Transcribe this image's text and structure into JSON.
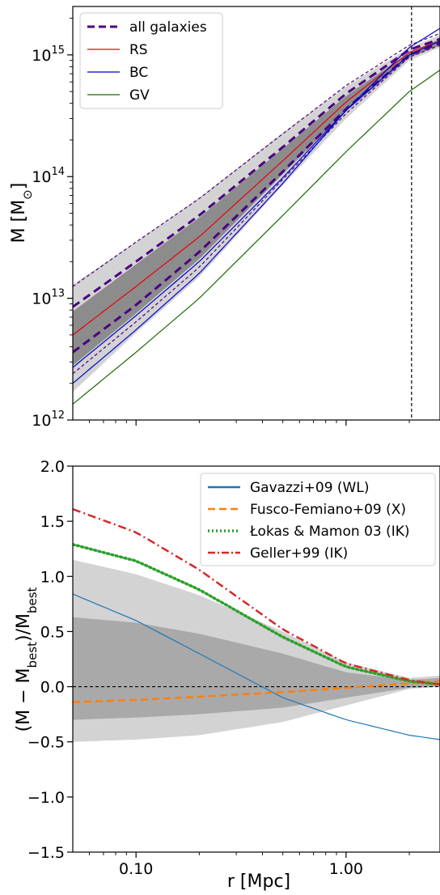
{
  "chart_data": [
    {
      "type": "line",
      "ylabel": "M [M",
      "ylabel_sub": "⊙",
      "ylabel_end": "]",
      "xscale": "log",
      "yscale": "log",
      "xlim": [
        0.05,
        2.8
      ],
      "ylim": [
        1000000000000.0,
        2500000000000000.0
      ],
      "ytick_base": "10",
      "yticks": [
        {
          "value": 1000000000000.0,
          "exp": "12"
        },
        {
          "value": 10000000000000.0,
          "exp": "13"
        },
        {
          "value": 100000000000000.0,
          "exp": "14"
        },
        {
          "value": 1000000000000000.0,
          "exp": "15"
        }
      ],
      "vline_x": 2.05,
      "legend_position": "top-left",
      "bands": [
        {
          "x": [
            0.05,
            0.1,
            0.2,
            0.5,
            1.0,
            2.0,
            2.8
          ],
          "lower": [
            2800000000000.0,
            7500000000000.0,
            21000000000000.0,
            105000000000000.0,
            345000000000000.0,
            950000000000000.0,
            1200000000000000.0
          ],
          "upper": [
            7800000000000.0,
            19000000000000.0,
            46000000000000.0,
            170000000000000.0,
            460000000000000.0,
            1050000000000000.0,
            1350000000000000.0
          ],
          "color": "#8c8c8c"
        },
        {
          "x": [
            0.05,
            0.1,
            0.2,
            0.5,
            1.0,
            2.0,
            2.8
          ],
          "lower": [
            1700000000000.0,
            5200000000000.0,
            15000000000000.0,
            85000000000000.0,
            300000000000000.0,
            900000000000000.0,
            1150000000000000.0
          ],
          "upper": [
            13000000000000.0,
            29000000000000.0,
            67000000000000.0,
            230000000000000.0,
            550000000000000.0,
            1150000000000000.0,
            1450000000000000.0
          ],
          "color": "#d3d3d3"
        }
      ],
      "series": [
        {
          "name": "all galaxies",
          "style": "dashed-thick",
          "color": "#4b0082",
          "x": [
            0.05,
            0.1,
            0.2,
            0.5,
            1.0,
            2.0,
            2.8
          ],
          "y": [
            8500000000000.0,
            20000000000000.0,
            48000000000000.0,
            175000000000000.0,
            480000000000000.0,
            1100000000000000.0,
            1350000000000000.0
          ]
        },
        {
          "name": "",
          "style": "dashed-thick",
          "color": "#4b0082",
          "x": [
            0.05,
            0.1,
            0.2,
            0.5,
            1.0,
            2.0,
            2.8
          ],
          "y": [
            3600000000000.0,
            8800000000000.0,
            24000000000000.0,
            110000000000000.0,
            360000000000000.0,
            1000000000000000.0,
            1250000000000000.0
          ]
        },
        {
          "name": "",
          "style": "dashed-thin",
          "color": "#4b0082",
          "x": [
            0.05,
            0.1,
            0.2,
            0.5,
            1.0,
            2.0,
            2.8
          ],
          "y": [
            12500000000000.0,
            29000000000000.0,
            66000000000000.0,
            225000000000000.0,
            560000000000000.0,
            1200000000000000.0,
            1500000000000000.0
          ]
        },
        {
          "name": "",
          "style": "dashed-thin",
          "color": "#4b0082",
          "x": [
            0.05,
            0.1,
            0.2,
            0.5,
            1.0,
            2.0,
            2.8
          ],
          "y": [
            2400000000000.0,
            6400000000000.0,
            18000000000000.0,
            95000000000000.0,
            330000000000000.0,
            960000000000000.0,
            1200000000000000.0
          ]
        },
        {
          "name": "RS",
          "style": "solid",
          "color": "#e8000b",
          "x": [
            0.05,
            0.1,
            0.2,
            0.5,
            1.0,
            2.0,
            2.8
          ],
          "y": [
            5000000000000.0,
            12500000000000.0,
            32000000000000.0,
            135000000000000.0,
            410000000000000.0,
            1050000000000000.0,
            1300000000000000.0
          ]
        },
        {
          "name": "BC",
          "style": "solid",
          "color": "#0000cd",
          "x": [
            0.05,
            0.1,
            0.2,
            0.5,
            1.0,
            2.0,
            2.8
          ],
          "y": [
            2000000000000.0,
            5500000000000.0,
            16000000000000.0,
            88000000000000.0,
            350000000000000.0,
            1150000000000000.0,
            1650000000000000.0
          ]
        },
        {
          "name": "",
          "style": "solid",
          "color": "#0000cd",
          "x": [
            0.05,
            0.1,
            0.2,
            0.5,
            1.0,
            2.0,
            2.8
          ],
          "y": [
            2700000000000.0,
            7200000000000.0,
            20000000000000.0,
            98000000000000.0,
            350000000000000.0,
            1000000000000000.0,
            1300000000000000.0
          ]
        },
        {
          "name": "GV",
          "style": "solid",
          "color": "#1a6b00",
          "x": [
            0.05,
            0.1,
            0.2,
            0.5,
            1.0,
            2.0,
            2.8
          ],
          "y": [
            1350000000000.0,
            3600000000000.0,
            10000000000000.0,
            48000000000000.0,
            160000000000000.0,
            500000000000000.0,
            750000000000000.0
          ]
        }
      ]
    },
    {
      "type": "line",
      "ylabel": "(M − M",
      "ylabel_sub1": "best",
      "ylabel_mid": ")/M",
      "ylabel_sub2": "best",
      "xlabel": "r [Mpc]",
      "xscale": "log",
      "yscale": "linear",
      "xlim": [
        0.05,
        2.8
      ],
      "ylim": [
        -1.5,
        2.0
      ],
      "xticks": [
        {
          "value": 0.1,
          "label": "0.10"
        },
        {
          "value": 1.0,
          "label": "1.00"
        }
      ],
      "yticks": [
        {
          "value": -1.5,
          "label": "−1.5"
        },
        {
          "value": -1.0,
          "label": "−1.0"
        },
        {
          "value": -0.5,
          "label": "−0.5"
        },
        {
          "value": 0.0,
          "label": "0.0"
        },
        {
          "value": 0.5,
          "label": "0.5"
        },
        {
          "value": 1.0,
          "label": "1.0"
        },
        {
          "value": 1.5,
          "label": "1.5"
        },
        {
          "value": 2.0,
          "label": "2.0"
        }
      ],
      "hline_y": 0.0,
      "legend_position": "top-right",
      "bands": [
        {
          "x": [
            0.05,
            0.1,
            0.2,
            0.5,
            1.0,
            2.0,
            2.8
          ],
          "lower": [
            -0.5,
            -0.48,
            -0.44,
            -0.32,
            -0.17,
            -0.02,
            0.0
          ],
          "upper": [
            1.15,
            1.02,
            0.83,
            0.5,
            0.22,
            0.08,
            0.1
          ],
          "color": "#d3d3d3"
        },
        {
          "x": [
            0.05,
            0.1,
            0.2,
            0.5,
            1.0,
            2.0,
            2.8
          ],
          "lower": [
            -0.3,
            -0.28,
            -0.25,
            -0.19,
            -0.1,
            -0.01,
            0.0
          ],
          "upper": [
            0.63,
            0.58,
            0.48,
            0.3,
            0.13,
            0.06,
            0.08
          ],
          "color": "#a9a9a9"
        }
      ],
      "series": [
        {
          "name": "Gavazzi+09 (WL)",
          "style": "solid",
          "color": "#1f77b4",
          "x": [
            0.05,
            0.1,
            0.2,
            0.5,
            1.0,
            2.0,
            2.8
          ],
          "y": [
            0.84,
            0.6,
            0.3,
            -0.1,
            -0.3,
            -0.44,
            -0.48
          ]
        },
        {
          "name": "Fusco-Femiano+09 (X)",
          "style": "dashed",
          "color": "#ff7f0e",
          "x": [
            0.05,
            0.1,
            0.2,
            0.5,
            1.0,
            2.0,
            2.8
          ],
          "y": [
            -0.14,
            -0.12,
            -0.09,
            -0.05,
            -0.01,
            0.03,
            0.05
          ]
        },
        {
          "name": "Łokas & Mamon 03 (IK)",
          "style": "dotted",
          "color": "#2ca02c",
          "x": [
            0.05,
            0.1,
            0.2,
            0.5,
            1.0,
            2.0,
            2.8
          ],
          "y": [
            1.29,
            1.14,
            0.88,
            0.45,
            0.18,
            0.05,
            0.02
          ]
        },
        {
          "name": "Geller+99 (IK)",
          "style": "dashdot",
          "color": "#d62728",
          "x": [
            0.05,
            0.1,
            0.2,
            0.5,
            1.0,
            2.0,
            2.8
          ],
          "y": [
            1.61,
            1.4,
            1.06,
            0.52,
            0.21,
            0.06,
            0.02
          ]
        }
      ]
    }
  ]
}
